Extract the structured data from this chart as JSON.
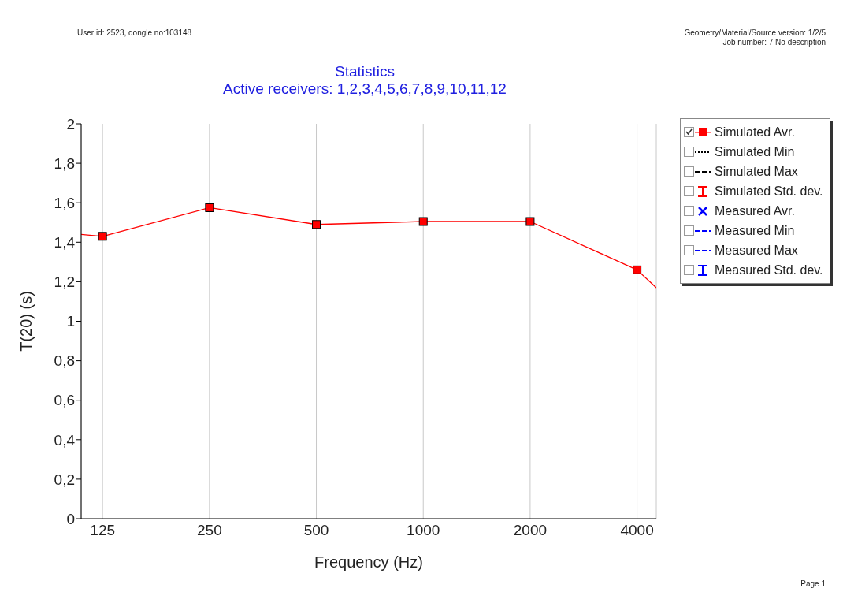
{
  "chart_data": {
    "type": "line",
    "title": "Statistics",
    "subtitle": "Active receivers: 1,2,3,4,5,6,7,8,9,10,11,12",
    "xlabel": "Frequency (Hz)",
    "ylabel": "T(20) (s)",
    "annotations": [
      "User id: 2523, dongle no:103148",
      "Geometry/Material/Source version: 1/2/5",
      "Job number: 7  No description",
      "Page 1"
    ],
    "x": [
      108.8,
      125,
      250,
      500,
      1000,
      2000,
      4000,
      4531
    ],
    "series": [
      {
        "name": "Simulated Avr.",
        "color": "#ff0000",
        "values": [
          1.44,
          1.43,
          1.575,
          1.49,
          1.505,
          1.505,
          1.26,
          1.17
        ],
        "marker": "square"
      },
      {
        "name": "Simulated Min",
        "color": "#000000",
        "values": [
          null,
          null,
          null,
          null,
          null,
          null,
          null,
          null
        ],
        "line_style": "dotted"
      },
      {
        "name": "Simulated Max",
        "color": "#000000",
        "values": [
          null,
          null,
          null,
          null,
          null,
          null,
          null,
          null
        ],
        "line_style": "dashed"
      },
      {
        "name": "Simulated Std. dev.",
        "color": "#ff0000",
        "values": [
          null,
          null,
          null,
          null,
          null,
          null,
          null,
          null
        ],
        "errors": [
          null,
          null,
          null,
          null,
          null,
          null,
          null,
          null
        ]
      },
      {
        "name": "Measured Avr.",
        "color": "#0000ff",
        "values": [
          null,
          null,
          null,
          null,
          null,
          null,
          null,
          null
        ],
        "marker": "cross"
      },
      {
        "name": "Measured Min",
        "color": "#0000ff",
        "values": [
          null,
          null,
          null,
          null,
          null,
          null,
          null,
          null
        ],
        "line_style": "dashed"
      },
      {
        "name": "Measured Max",
        "color": "#0000ff",
        "values": [
          null,
          null,
          null,
          null,
          null,
          null,
          null,
          null
        ],
        "line_style": "dashed"
      },
      {
        "name": "Measured Std. dev.",
        "color": "#0000ff",
        "values": [
          null,
          null,
          null,
          null,
          null,
          null,
          null,
          null
        ],
        "errors": [
          null,
          null,
          null,
          null,
          null,
          null,
          null,
          null
        ]
      }
    ],
    "log": "x",
    "xlim": [
      108.8,
      4531
    ],
    "xticks": [
      125,
      250,
      500,
      1000,
      2000,
      4000
    ],
    "ylim": [
      0,
      2
    ],
    "yticks": [
      0,
      {
        "value": 0.2,
        "label": "0,2"
      },
      {
        "value": 0.4,
        "label": "0,4"
      },
      {
        "value": 0.6,
        "label": "0,6"
      },
      {
        "value": 0.8,
        "label": "0,8"
      },
      1,
      {
        "value": 1.2,
        "label": "1,2"
      },
      {
        "value": 1.4,
        "label": "1,4"
      },
      {
        "value": 1.6,
        "label": "1,6"
      },
      {
        "value": 1.8,
        "label": "1,8"
      },
      2
    ],
    "grid": "x",
    "legend": "right"
  }
}
